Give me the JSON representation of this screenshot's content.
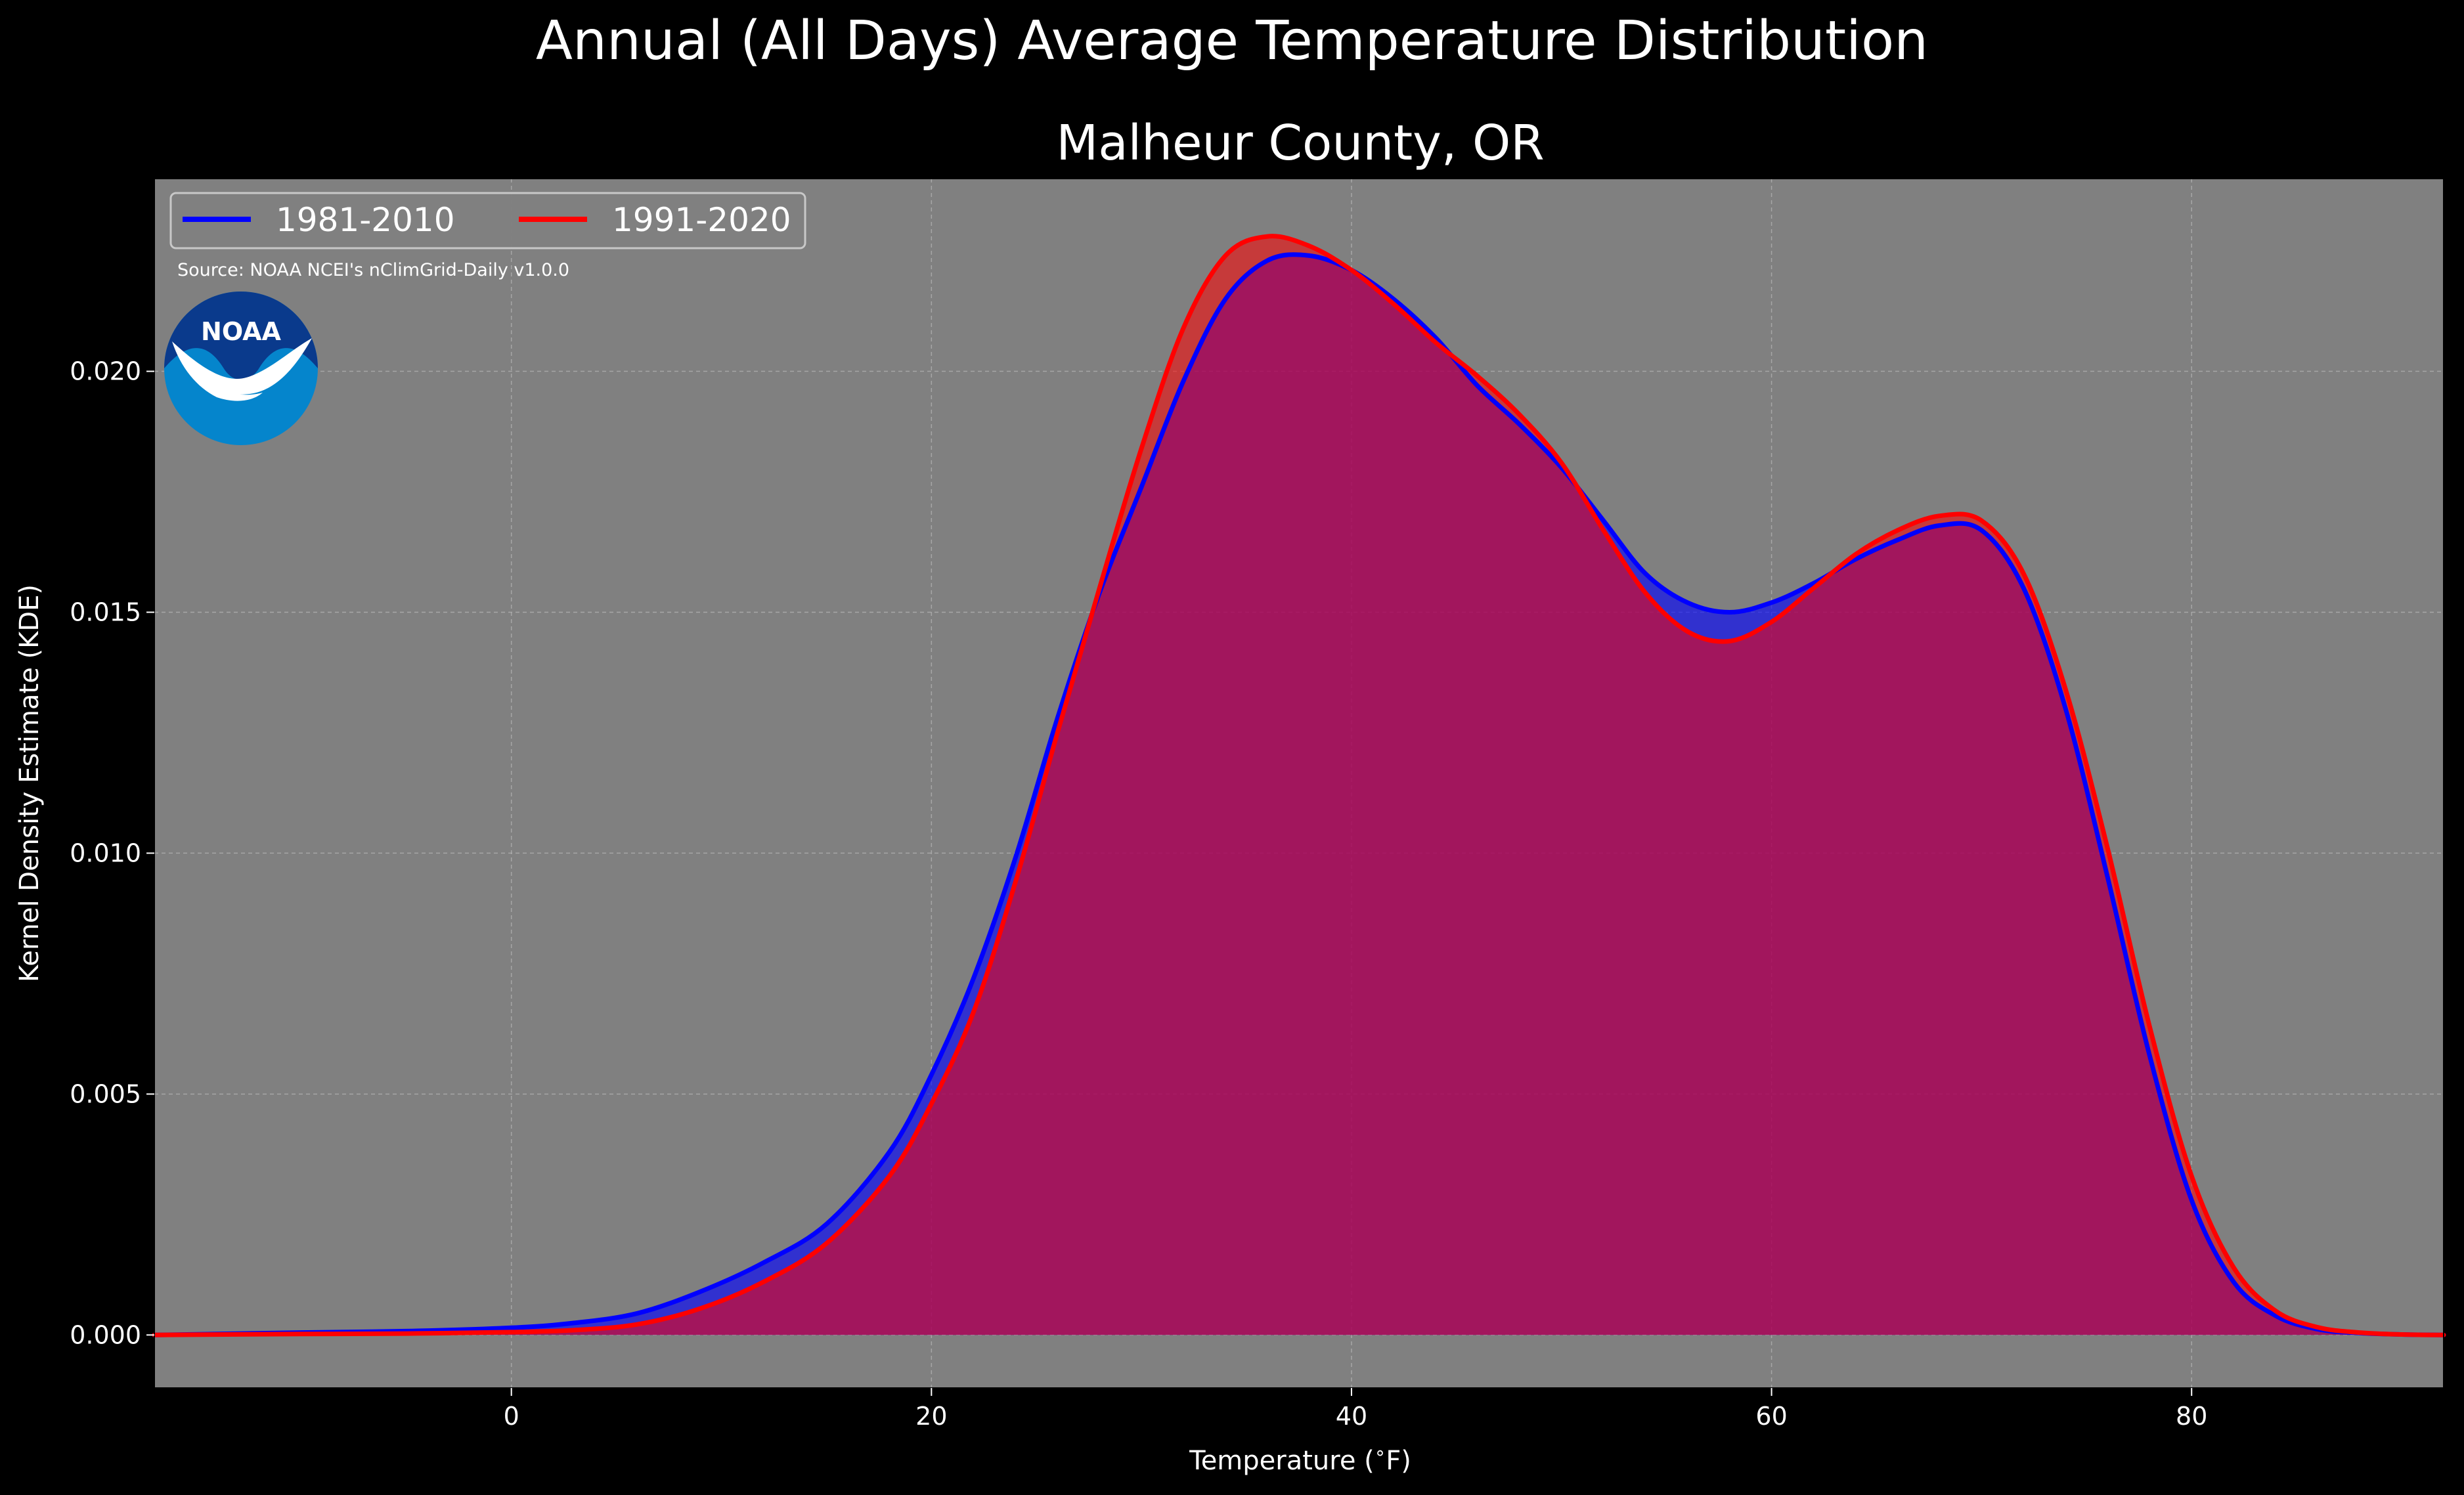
{
  "colors": {
    "background": "#000000",
    "plot_background": "#808080",
    "series_1981_2010": "#0000ff",
    "series_1991_2020": "#ff0000",
    "fill_blend": "#9e1f5c"
  },
  "logo": {
    "text": "NOAA",
    "icon": "noaa-logo-icon"
  },
  "chart_data": {
    "type": "area",
    "suptitle": "Annual (All Days) Average Temperature Distribution",
    "title": "Malheur County, OR",
    "xlabel": "Temperature ($^\\circ$F)",
    "ylabel": "Kernel Density Estimate (KDE)",
    "xlim": [
      -17,
      92
    ],
    "ylim": [
      -0.0011,
      0.024
    ],
    "xticks": [
      0,
      20,
      40,
      60,
      80
    ],
    "xtick_labels": [
      "0",
      "20",
      "40",
      "60",
      "80"
    ],
    "yticks": [
      0.0,
      0.005,
      0.01,
      0.015,
      0.02
    ],
    "ytick_labels": [
      "0.000",
      "0.005",
      "0.010",
      "0.015",
      "0.020"
    ],
    "grid": true,
    "legend_position": "top-left",
    "source_note": "Source: NOAA NCEI's nClimGrid-Daily v1.0.0",
    "series": [
      {
        "name": "1981-2010",
        "color": "#0000ff",
        "x": [
          -17,
          -10,
          -5,
          0,
          3,
          6,
          9,
          12,
          15,
          18,
          20,
          22,
          24,
          26,
          28,
          30,
          32,
          34,
          36,
          38,
          40,
          42,
          44,
          46,
          48,
          50,
          52,
          54,
          56,
          58,
          60,
          62,
          64,
          66,
          68,
          70,
          72,
          74,
          76,
          78,
          80,
          82,
          84,
          86,
          88,
          90,
          92
        ],
        "y": [
          0.0,
          5e-05,
          8e-05,
          0.00015,
          0.00025,
          0.00045,
          0.0009,
          0.0015,
          0.0023,
          0.0038,
          0.0054,
          0.0074,
          0.0099,
          0.0128,
          0.0154,
          0.0176,
          0.0198,
          0.0215,
          0.0223,
          0.0224,
          0.0221,
          0.0215,
          0.0207,
          0.0197,
          0.0189,
          0.018,
          0.0169,
          0.0158,
          0.0152,
          0.015,
          0.0152,
          0.0156,
          0.0161,
          0.0165,
          0.0168,
          0.0167,
          0.0155,
          0.013,
          0.0095,
          0.0058,
          0.0028,
          0.0011,
          0.0004,
          0.00012,
          4e-05,
          1e-05,
          0.0
        ]
      },
      {
        "name": "1991-2020",
        "color": "#ff0000",
        "x": [
          -17,
          -10,
          -5,
          0,
          3,
          6,
          9,
          12,
          15,
          18,
          20,
          22,
          24,
          26,
          28,
          30,
          32,
          34,
          36,
          38,
          40,
          42,
          44,
          46,
          48,
          50,
          52,
          54,
          56,
          58,
          60,
          62,
          64,
          66,
          68,
          70,
          72,
          74,
          76,
          78,
          80,
          82,
          84,
          86,
          88,
          90,
          92
        ],
        "y": [
          0.0,
          2e-05,
          3e-05,
          6e-05,
          0.0001,
          0.00022,
          0.00055,
          0.0011,
          0.0019,
          0.0033,
          0.0048,
          0.0067,
          0.0094,
          0.0125,
          0.0155,
          0.0184,
          0.0209,
          0.0224,
          0.0228,
          0.0226,
          0.0221,
          0.0214,
          0.0206,
          0.0199,
          0.0191,
          0.0181,
          0.0167,
          0.0154,
          0.0146,
          0.0144,
          0.0148,
          0.0155,
          0.0162,
          0.0167,
          0.017,
          0.0169,
          0.0158,
          0.0134,
          0.0101,
          0.0064,
          0.0033,
          0.0014,
          0.0005,
          0.00016,
          5e-05,
          1e-05,
          0.0
        ]
      }
    ]
  }
}
